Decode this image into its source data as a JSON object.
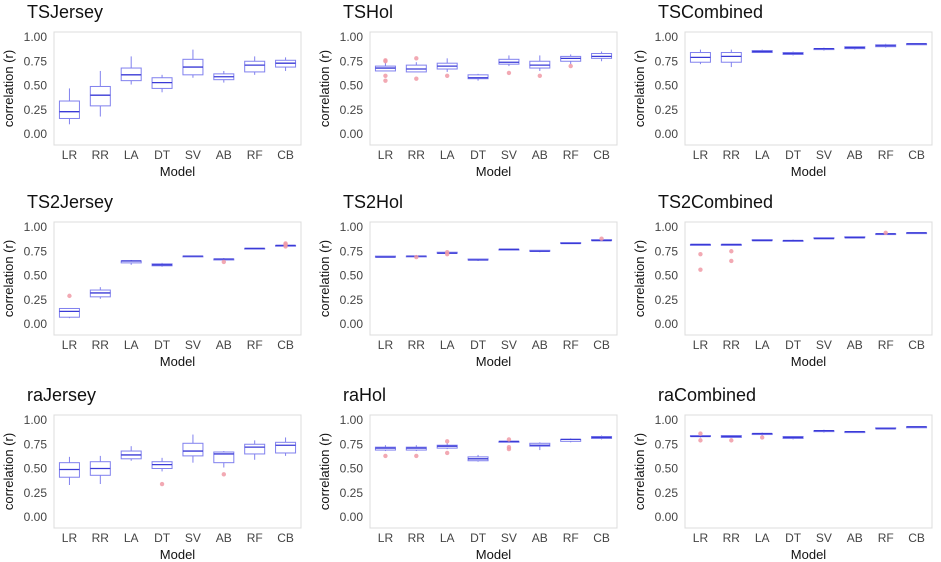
{
  "figure": {
    "layout": "3x3 grid of box plots",
    "box_color": "#8080ee",
    "median_color": "#3a3ad6",
    "outlier_color": "#f09aa6",
    "frame_color": "#dcdcdc"
  },
  "chart_data": [
    {
      "title": "TSJersey",
      "type": "box",
      "xlabel": "Model",
      "ylabel": "correlation (r)",
      "ylim": [
        0,
        1
      ],
      "yticks": [
        "0.00",
        "0.25",
        "0.50",
        "0.75",
        "1.00"
      ],
      "categories": [
        "LR",
        "RR",
        "LA",
        "DT",
        "SV",
        "AB",
        "RF",
        "CB"
      ],
      "boxes": [
        {
          "lo": 0.1,
          "q1": 0.16,
          "med": 0.23,
          "q3": 0.34,
          "hi": 0.47,
          "out": []
        },
        {
          "lo": 0.18,
          "q1": 0.29,
          "med": 0.4,
          "q3": 0.49,
          "hi": 0.65,
          "out": []
        },
        {
          "lo": 0.51,
          "q1": 0.55,
          "med": 0.61,
          "q3": 0.68,
          "hi": 0.8,
          "out": []
        },
        {
          "lo": 0.43,
          "q1": 0.47,
          "med": 0.53,
          "q3": 0.58,
          "hi": 0.61,
          "out": []
        },
        {
          "lo": 0.58,
          "q1": 0.61,
          "med": 0.69,
          "q3": 0.77,
          "hi": 0.87,
          "out": []
        },
        {
          "lo": 0.53,
          "q1": 0.56,
          "med": 0.59,
          "q3": 0.62,
          "hi": 0.65,
          "out": []
        },
        {
          "lo": 0.61,
          "q1": 0.64,
          "med": 0.71,
          "q3": 0.75,
          "hi": 0.8,
          "out": []
        },
        {
          "lo": 0.65,
          "q1": 0.69,
          "med": 0.73,
          "q3": 0.76,
          "hi": 0.79,
          "out": []
        }
      ]
    },
    {
      "title": "TSHol",
      "type": "box",
      "xlabel": "Model",
      "ylabel": "correlation (r)",
      "ylim": [
        0,
        1
      ],
      "yticks": [
        "0.00",
        "0.25",
        "0.50",
        "0.75",
        "1.00"
      ],
      "categories": [
        "LR",
        "RR",
        "LA",
        "DT",
        "SV",
        "AB",
        "RF",
        "CB"
      ],
      "boxes": [
        {
          "lo": 0.65,
          "q1": 0.65,
          "med": 0.68,
          "q3": 0.7,
          "hi": 0.74,
          "out": [
            0.55,
            0.6,
            0.75,
            0.76
          ]
        },
        {
          "lo": 0.64,
          "q1": 0.64,
          "med": 0.67,
          "q3": 0.71,
          "hi": 0.74,
          "out": [
            0.57,
            0.78
          ]
        },
        {
          "lo": 0.64,
          "q1": 0.67,
          "med": 0.7,
          "q3": 0.73,
          "hi": 0.78,
          "out": [
            0.6
          ]
        },
        {
          "lo": 0.55,
          "q1": 0.57,
          "med": 0.58,
          "q3": 0.61,
          "hi": 0.62,
          "out": []
        },
        {
          "lo": 0.7,
          "q1": 0.72,
          "med": 0.74,
          "q3": 0.77,
          "hi": 0.81,
          "out": [
            0.63
          ]
        },
        {
          "lo": 0.65,
          "q1": 0.68,
          "med": 0.71,
          "q3": 0.75,
          "hi": 0.81,
          "out": [
            0.6
          ]
        },
        {
          "lo": 0.72,
          "q1": 0.75,
          "med": 0.78,
          "q3": 0.8,
          "hi": 0.82,
          "out": [
            0.7
          ]
        },
        {
          "lo": 0.75,
          "q1": 0.78,
          "med": 0.8,
          "q3": 0.83,
          "hi": 0.85,
          "out": []
        }
      ]
    },
    {
      "title": "TSCombined",
      "type": "box",
      "xlabel": "Model",
      "ylabel": "correlation (r)",
      "ylim": [
        0,
        1
      ],
      "yticks": [
        "0.00",
        "0.25",
        "0.50",
        "0.75",
        "1.00"
      ],
      "categories": [
        "LR",
        "RR",
        "LA",
        "DT",
        "SV",
        "AB",
        "RF",
        "CB"
      ],
      "boxes": [
        {
          "lo": 0.72,
          "q1": 0.74,
          "med": 0.79,
          "q3": 0.84,
          "hi": 0.87,
          "out": []
        },
        {
          "lo": 0.69,
          "q1": 0.74,
          "med": 0.8,
          "q3": 0.84,
          "hi": 0.87,
          "out": []
        },
        {
          "lo": 0.84,
          "q1": 0.84,
          "med": 0.85,
          "q3": 0.86,
          "hi": 0.87,
          "out": []
        },
        {
          "lo": 0.81,
          "q1": 0.82,
          "med": 0.83,
          "q3": 0.84,
          "hi": 0.85,
          "out": []
        },
        {
          "lo": 0.86,
          "q1": 0.87,
          "med": 0.88,
          "q3": 0.88,
          "hi": 0.89,
          "out": []
        },
        {
          "lo": 0.87,
          "q1": 0.88,
          "med": 0.89,
          "q3": 0.9,
          "hi": 0.9,
          "out": []
        },
        {
          "lo": 0.89,
          "q1": 0.9,
          "med": 0.91,
          "q3": 0.92,
          "hi": 0.93,
          "out": []
        },
        {
          "lo": 0.92,
          "q1": 0.92,
          "med": 0.93,
          "q3": 0.93,
          "hi": 0.93,
          "out": []
        }
      ]
    },
    {
      "title": "TS2Jersey",
      "type": "box",
      "xlabel": "Model",
      "ylabel": "correlation (r)",
      "ylim": [
        0,
        1
      ],
      "yticks": [
        "0.00",
        "0.25",
        "0.50",
        "0.75",
        "1.00"
      ],
      "categories": [
        "LR",
        "RR",
        "LA",
        "DT",
        "SV",
        "AB",
        "RF",
        "CB"
      ],
      "boxes": [
        {
          "lo": 0.06,
          "q1": 0.07,
          "med": 0.13,
          "q3": 0.16,
          "hi": 0.16,
          "out": [
            0.29
          ]
        },
        {
          "lo": 0.26,
          "q1": 0.28,
          "med": 0.32,
          "q3": 0.35,
          "hi": 0.38,
          "out": []
        },
        {
          "lo": 0.61,
          "q1": 0.63,
          "med": 0.65,
          "q3": 0.65,
          "hi": 0.66,
          "out": []
        },
        {
          "lo": 0.59,
          "q1": 0.6,
          "med": 0.61,
          "q3": 0.62,
          "hi": 0.63,
          "out": []
        },
        {
          "lo": 0.7,
          "q1": 0.7,
          "med": 0.7,
          "q3": 0.7,
          "hi": 0.7,
          "out": []
        },
        {
          "lo": 0.65,
          "q1": 0.66,
          "med": 0.67,
          "q3": 0.67,
          "hi": 0.68,
          "out": [
            0.64
          ]
        },
        {
          "lo": 0.78,
          "q1": 0.78,
          "med": 0.78,
          "q3": 0.78,
          "hi": 0.78,
          "out": []
        },
        {
          "lo": 0.81,
          "q1": 0.81,
          "med": 0.81,
          "q3": 0.81,
          "hi": 0.81,
          "out": [
            0.8,
            0.82,
            0.83
          ]
        }
      ]
    },
    {
      "title": "TS2Hol",
      "type": "box",
      "xlabel": "Model",
      "ylabel": "correlation (r)",
      "ylim": [
        0,
        1
      ],
      "yticks": [
        "0.00",
        "0.25",
        "0.50",
        "0.75",
        "1.00"
      ],
      "categories": [
        "LR",
        "RR",
        "LA",
        "DT",
        "SV",
        "AB",
        "RF",
        "CB"
      ],
      "boxes": [
        {
          "lo": 0.69,
          "q1": 0.69,
          "med": 0.69,
          "q3": 0.7,
          "hi": 0.7,
          "out": []
        },
        {
          "lo": 0.69,
          "q1": 0.7,
          "med": 0.7,
          "q3": 0.7,
          "hi": 0.71,
          "out": [
            0.69
          ]
        },
        {
          "lo": 0.72,
          "q1": 0.73,
          "med": 0.73,
          "q3": 0.74,
          "hi": 0.74,
          "out": [
            0.72,
            0.74
          ]
        },
        {
          "lo": 0.65,
          "q1": 0.66,
          "med": 0.66,
          "q3": 0.67,
          "hi": 0.67,
          "out": []
        },
        {
          "lo": 0.77,
          "q1": 0.77,
          "med": 0.77,
          "q3": 0.77,
          "hi": 0.77,
          "out": []
        },
        {
          "lo": 0.74,
          "q1": 0.75,
          "med": 0.75,
          "q3": 0.76,
          "hi": 0.76,
          "out": []
        },
        {
          "lo": 0.83,
          "q1": 0.83,
          "med": 0.83,
          "q3": 0.84,
          "hi": 0.84,
          "out": []
        },
        {
          "lo": 0.86,
          "q1": 0.86,
          "med": 0.86,
          "q3": 0.87,
          "hi": 0.87,
          "out": [
            0.88
          ]
        }
      ]
    },
    {
      "title": "TS2Combined",
      "type": "box",
      "xlabel": "Model",
      "ylabel": "correlation (r)",
      "ylim": [
        0,
        1
      ],
      "yticks": [
        "0.00",
        "0.25",
        "0.50",
        "0.75",
        "1.00"
      ],
      "categories": [
        "LR",
        "RR",
        "LA",
        "DT",
        "SV",
        "AB",
        "RF",
        "CB"
      ],
      "boxes": [
        {
          "lo": 0.81,
          "q1": 0.81,
          "med": 0.82,
          "q3": 0.82,
          "hi": 0.82,
          "out": [
            0.56,
            0.72
          ]
        },
        {
          "lo": 0.81,
          "q1": 0.81,
          "med": 0.82,
          "q3": 0.82,
          "hi": 0.82,
          "out": [
            0.65,
            0.75
          ]
        },
        {
          "lo": 0.86,
          "q1": 0.86,
          "med": 0.86,
          "q3": 0.87,
          "hi": 0.87,
          "out": []
        },
        {
          "lo": 0.85,
          "q1": 0.86,
          "med": 0.86,
          "q3": 0.86,
          "hi": 0.87,
          "out": []
        },
        {
          "lo": 0.88,
          "q1": 0.88,
          "med": 0.88,
          "q3": 0.89,
          "hi": 0.89,
          "out": []
        },
        {
          "lo": 0.89,
          "q1": 0.89,
          "med": 0.89,
          "q3": 0.9,
          "hi": 0.9,
          "out": []
        },
        {
          "lo": 0.93,
          "q1": 0.93,
          "med": 0.93,
          "q3": 0.93,
          "hi": 0.93,
          "out": [
            0.94
          ]
        },
        {
          "lo": 0.94,
          "q1": 0.94,
          "med": 0.94,
          "q3": 0.94,
          "hi": 0.94,
          "out": []
        }
      ]
    },
    {
      "title": "raJersey",
      "type": "box",
      "xlabel": "Model",
      "ylabel": "correlation (r)",
      "ylim": [
        0,
        1
      ],
      "yticks": [
        "0.00",
        "0.25",
        "0.50",
        "0.75",
        "1.00"
      ],
      "categories": [
        "LR",
        "RR",
        "LA",
        "DT",
        "SV",
        "AB",
        "RF",
        "CB"
      ],
      "boxes": [
        {
          "lo": 0.33,
          "q1": 0.41,
          "med": 0.49,
          "q3": 0.56,
          "hi": 0.62,
          "out": []
        },
        {
          "lo": 0.34,
          "q1": 0.43,
          "med": 0.5,
          "q3": 0.57,
          "hi": 0.63,
          "out": []
        },
        {
          "lo": 0.58,
          "q1": 0.6,
          "med": 0.64,
          "q3": 0.68,
          "hi": 0.73,
          "out": []
        },
        {
          "lo": 0.47,
          "q1": 0.5,
          "med": 0.54,
          "q3": 0.57,
          "hi": 0.61,
          "out": [
            0.34
          ]
        },
        {
          "lo": 0.56,
          "q1": 0.63,
          "med": 0.68,
          "q3": 0.76,
          "hi": 0.85,
          "out": []
        },
        {
          "lo": 0.51,
          "q1": 0.56,
          "med": 0.65,
          "q3": 0.67,
          "hi": 0.68,
          "out": [
            0.44
          ]
        },
        {
          "lo": 0.59,
          "q1": 0.65,
          "med": 0.72,
          "q3": 0.75,
          "hi": 0.79,
          "out": []
        },
        {
          "lo": 0.63,
          "q1": 0.66,
          "med": 0.74,
          "q3": 0.77,
          "hi": 0.82,
          "out": []
        }
      ]
    },
    {
      "title": "raHol",
      "type": "box",
      "xlabel": "Model",
      "ylabel": "correlation (r)",
      "ylim": [
        0,
        1
      ],
      "yticks": [
        "0.00",
        "0.25",
        "0.50",
        "0.75",
        "1.00"
      ],
      "categories": [
        "LR",
        "RR",
        "LA",
        "DT",
        "SV",
        "AB",
        "RF",
        "CB"
      ],
      "boxes": [
        {
          "lo": 0.68,
          "q1": 0.69,
          "med": 0.71,
          "q3": 0.72,
          "hi": 0.74,
          "out": [
            0.63
          ]
        },
        {
          "lo": 0.68,
          "q1": 0.69,
          "med": 0.71,
          "q3": 0.72,
          "hi": 0.74,
          "out": [
            0.63
          ]
        },
        {
          "lo": 0.7,
          "q1": 0.71,
          "med": 0.73,
          "q3": 0.74,
          "hi": 0.76,
          "out": [
            0.66,
            0.78
          ]
        },
        {
          "lo": 0.57,
          "q1": 0.58,
          "med": 0.6,
          "q3": 0.62,
          "hi": 0.64,
          "out": []
        },
        {
          "lo": 0.77,
          "q1": 0.77,
          "med": 0.78,
          "q3": 0.78,
          "hi": 0.79,
          "out": [
            0.7,
            0.72,
            0.8
          ]
        },
        {
          "lo": 0.69,
          "q1": 0.73,
          "med": 0.74,
          "q3": 0.76,
          "hi": 0.77,
          "out": []
        },
        {
          "lo": 0.77,
          "q1": 0.78,
          "med": 0.8,
          "q3": 0.8,
          "hi": 0.81,
          "out": []
        },
        {
          "lo": 0.8,
          "q1": 0.81,
          "med": 0.82,
          "q3": 0.83,
          "hi": 0.84,
          "out": []
        }
      ]
    },
    {
      "title": "raCombined",
      "type": "box",
      "xlabel": "Model",
      "ylabel": "correlation (r)",
      "ylim": [
        0,
        1
      ],
      "yticks": [
        "0.00",
        "0.25",
        "0.50",
        "0.75",
        "1.00"
      ],
      "categories": [
        "LR",
        "RR",
        "LA",
        "DT",
        "SV",
        "AB",
        "RF",
        "CB"
      ],
      "boxes": [
        {
          "lo": 0.82,
          "q1": 0.83,
          "med": 0.83,
          "q3": 0.84,
          "hi": 0.84,
          "out": [
            0.79,
            0.86
          ]
        },
        {
          "lo": 0.82,
          "q1": 0.82,
          "med": 0.83,
          "q3": 0.84,
          "hi": 0.84,
          "out": [
            0.79
          ]
        },
        {
          "lo": 0.84,
          "q1": 0.85,
          "med": 0.86,
          "q3": 0.86,
          "hi": 0.87,
          "out": [
            0.82
          ]
        },
        {
          "lo": 0.8,
          "q1": 0.81,
          "med": 0.82,
          "q3": 0.83,
          "hi": 0.83,
          "out": []
        },
        {
          "lo": 0.87,
          "q1": 0.88,
          "med": 0.89,
          "q3": 0.89,
          "hi": 0.9,
          "out": []
        },
        {
          "lo": 0.87,
          "q1": 0.87,
          "med": 0.88,
          "q3": 0.88,
          "hi": 0.88,
          "out": []
        },
        {
          "lo": 0.91,
          "q1": 0.91,
          "med": 0.91,
          "q3": 0.92,
          "hi": 0.92,
          "out": []
        },
        {
          "lo": 0.92,
          "q1": 0.92,
          "med": 0.93,
          "q3": 0.93,
          "hi": 0.93,
          "out": []
        }
      ]
    }
  ]
}
